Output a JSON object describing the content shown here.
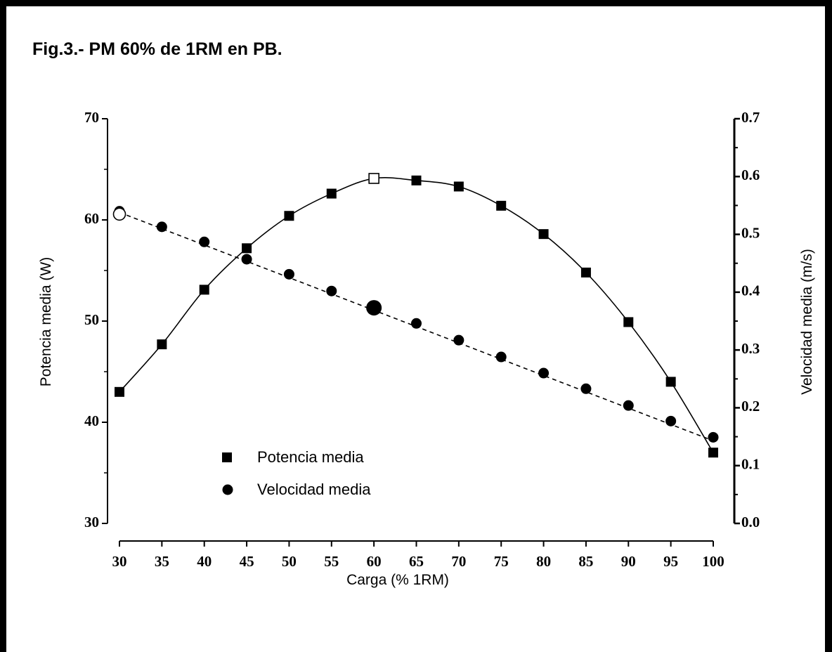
{
  "figure_title": "Fig.3.- PM 60% de 1RM en PB.",
  "chart_data": {
    "type": "line",
    "xlabel": "Carga (% 1RM)",
    "ylabel_left": "Potencia media (W)",
    "ylabel_right": "Velocidad media (m/s)",
    "x": [
      30,
      35,
      40,
      45,
      50,
      55,
      60,
      65,
      70,
      75,
      80,
      85,
      90,
      95,
      100
    ],
    "x_ticks": [
      "30",
      "35",
      "40",
      "45",
      "50",
      "55",
      "60",
      "65",
      "70",
      "75",
      "80",
      "85",
      "90",
      "95",
      "100"
    ],
    "y_left_ticks": [
      "30",
      "40",
      "50",
      "60",
      "70"
    ],
    "y_right_ticks": [
      "0.0",
      "0.1",
      "0.2",
      "0.3",
      "0.4",
      "0.5",
      "0.6",
      "0.7"
    ],
    "ylim_left": [
      30,
      70
    ],
    "ylim_right": [
      0.0,
      0.7
    ],
    "xlim": [
      30,
      100
    ],
    "series": [
      {
        "name": "Potencia media",
        "axis": "left",
        "marker": "square",
        "line": "solid",
        "values": [
          43.0,
          47.7,
          53.1,
          57.2,
          60.4,
          62.6,
          64.1,
          63.9,
          63.3,
          61.4,
          58.6,
          54.8,
          49.9,
          44.0,
          37.0
        ],
        "highlight_index": 6
      },
      {
        "name": "Velocidad media",
        "axis": "right",
        "marker": "circle",
        "line": "dashed",
        "values": [
          0.54,
          0.513,
          0.487,
          0.457,
          0.431,
          0.402,
          0.373,
          0.346,
          0.317,
          0.288,
          0.26,
          0.233,
          0.204,
          0.177,
          0.149
        ],
        "highlight_index": 6
      }
    ],
    "fit_line_velocity": {
      "x": [
        30,
        100
      ],
      "y": [
        0.538,
        0.143
      ]
    },
    "open_marker": {
      "x": 30,
      "y": 0.535
    },
    "legend_position": "lower-left",
    "grid": false
  },
  "colors": {
    "ink": "#000000",
    "background": "#ffffff",
    "open_marker_fill": "#ffffff"
  }
}
